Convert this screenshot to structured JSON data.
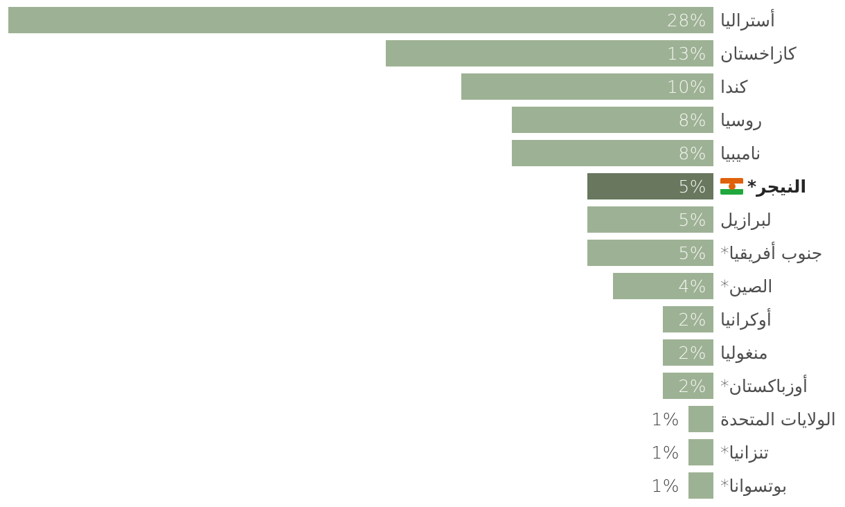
{
  "chart_data": {
    "type": "bar",
    "orientation": "horizontal",
    "text_direction": "rtl",
    "title": "",
    "xlabel": "",
    "ylabel": "",
    "unit": "%",
    "xlim": [
      0,
      28
    ],
    "grid": false,
    "legend": false,
    "value_label_rule": "inside bar for values >= 2%, outside (left of bar) for 1%",
    "categories": [
      "أستراليا",
      "كازاخستان",
      "كندا",
      "روسيا",
      "ناميبيا",
      "النيجر*",
      "لبرازيل",
      "جنوب أفريقيا*",
      "الصين*",
      "أوكرانيا",
      "منغوليا",
      "أوزباكستان*",
      "الولايات المتحدة",
      "تنزانيا*",
      "بوتسوانا*"
    ],
    "values": [
      28,
      13,
      10,
      8,
      8,
      5,
      5,
      5,
      4,
      2,
      2,
      2,
      1,
      1,
      1
    ],
    "highlighted_category": "النيجر*",
    "rows": [
      {
        "label": "أستراليا",
        "value": 28,
        "value_label": "28%",
        "highlight": false,
        "value_outside": false,
        "flag": null
      },
      {
        "label": "كازاخستان",
        "value": 13,
        "value_label": "13%",
        "highlight": false,
        "value_outside": false,
        "flag": null
      },
      {
        "label": "كندا",
        "value": 10,
        "value_label": "10%",
        "highlight": false,
        "value_outside": false,
        "flag": null
      },
      {
        "label": "روسيا",
        "value": 8,
        "value_label": "8%",
        "highlight": false,
        "value_outside": false,
        "flag": null
      },
      {
        "label": "ناميبيا",
        "value": 8,
        "value_label": "8%",
        "highlight": false,
        "value_outside": false,
        "flag": null
      },
      {
        "label": "النيجر*",
        "value": 5,
        "value_label": "5%",
        "highlight": true,
        "value_outside": false,
        "flag": "niger-flag"
      },
      {
        "label": "لبرازيل",
        "value": 5,
        "value_label": "5%",
        "highlight": false,
        "value_outside": false,
        "flag": null
      },
      {
        "label": "جنوب أفريقيا*",
        "value": 5,
        "value_label": "5%",
        "highlight": false,
        "value_outside": false,
        "flag": null
      },
      {
        "label": "الصين*",
        "value": 4,
        "value_label": "4%",
        "highlight": false,
        "value_outside": false,
        "flag": null
      },
      {
        "label": "أوكرانيا",
        "value": 2,
        "value_label": "2%",
        "highlight": false,
        "value_outside": false,
        "flag": null
      },
      {
        "label": "منغوليا",
        "value": 2,
        "value_label": "2%",
        "highlight": false,
        "value_outside": false,
        "flag": null
      },
      {
        "label": "أوزباكستان*",
        "value": 2,
        "value_label": "2%",
        "highlight": false,
        "value_outside": false,
        "flag": null
      },
      {
        "label": "الولايات المتحدة",
        "value": 1,
        "value_label": "1%",
        "highlight": false,
        "value_outside": true,
        "flag": null
      },
      {
        "label": "تنزانيا*",
        "value": 1,
        "value_label": "1%",
        "highlight": false,
        "value_outside": true,
        "flag": null
      },
      {
        "label": "بوتسوانا*",
        "value": 1,
        "value_label": "1%",
        "highlight": false,
        "value_outside": true,
        "flag": null
      }
    ],
    "colors": {
      "background": "#ffffff",
      "bar": "#9DB294",
      "bar_highlight": "#68775D",
      "label_text": "#4d4d4d",
      "label_text_highlight": "#262626",
      "value_inside_text": "#f5f5f3",
      "value_outside_text": "#3e3e3e",
      "flag_orange": "#E0610B",
      "flag_white": "#ffffff",
      "flag_green": "#1FA83D"
    }
  }
}
